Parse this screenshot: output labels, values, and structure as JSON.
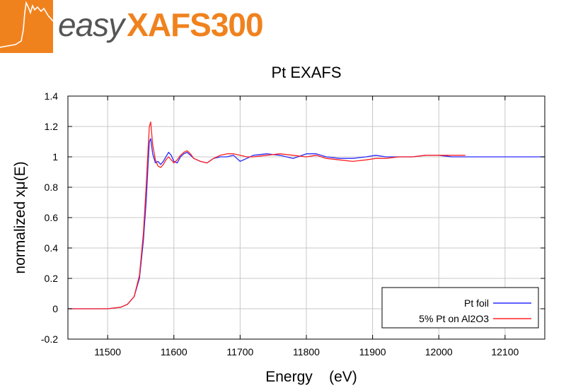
{
  "logo": {
    "easy": "easy",
    "brand": "XAFS300"
  },
  "chart_data": {
    "type": "line",
    "title": "Pt EXAFS",
    "xlabel": "Energy    (eV)",
    "ylabel": "normalized xμ(E)",
    "xlim": [
      11440,
      12160
    ],
    "ylim": [
      -0.2,
      1.4
    ],
    "x_ticks": [
      11500,
      11600,
      11700,
      11800,
      11900,
      12000,
      12100
    ],
    "y_ticks": [
      -0.2,
      0,
      0.2,
      0.4,
      0.6,
      0.8,
      1,
      1.2,
      1.4
    ],
    "y_tick_labels": [
      "-0.2",
      "0",
      "0.2",
      "0.4",
      "0.6",
      "0.8",
      "1",
      "1.2",
      "1.4"
    ],
    "grid": true,
    "legend_position": "bottom-right",
    "series": [
      {
        "name": "Pt foil",
        "color": "#2a2aff",
        "x": [
          11440,
          11460,
          11480,
          11500,
          11520,
          11530,
          11540,
          11548,
          11554,
          11558,
          11561,
          11563,
          11565,
          11568,
          11572,
          11576,
          11580,
          11584,
          11588,
          11592,
          11596,
          11600,
          11605,
          11610,
          11615,
          11620,
          11625,
          11630,
          11640,
          11650,
          11660,
          11670,
          11680,
          11690,
          11700,
          11710,
          11720,
          11740,
          11760,
          11780,
          11800,
          11815,
          11830,
          11850,
          11870,
          11890,
          11905,
          11920,
          11940,
          11960,
          11980,
          12000,
          12020,
          12040,
          12060,
          12080,
          12100,
          12120,
          12140,
          12160
        ],
        "y": [
          0.0,
          0.0,
          0.0,
          0.0,
          0.01,
          0.03,
          0.08,
          0.2,
          0.45,
          0.7,
          0.95,
          1.1,
          1.12,
          1.02,
          0.96,
          0.97,
          0.95,
          0.97,
          1.0,
          1.03,
          1.01,
          0.97,
          0.96,
          1.0,
          1.02,
          1.03,
          1.01,
          0.99,
          0.97,
          0.96,
          0.99,
          1.0,
          1.0,
          1.01,
          0.97,
          0.99,
          1.01,
          1.02,
          1.01,
          0.99,
          1.02,
          1.02,
          1.0,
          0.99,
          0.99,
          1.0,
          1.01,
          1.0,
          1.0,
          1.0,
          1.01,
          1.01,
          1.0,
          1.0,
          1.0,
          1.0,
          1.0,
          1.0,
          1.0,
          1.0
        ]
      },
      {
        "name": "5% Pt on Al2O3",
        "color": "#ff2020",
        "x": [
          11440,
          11460,
          11480,
          11500,
          11520,
          11530,
          11540,
          11548,
          11554,
          11558,
          11561,
          11563,
          11565,
          11568,
          11572,
          11576,
          11580,
          11584,
          11588,
          11592,
          11596,
          11600,
          11605,
          11610,
          11615,
          11620,
          11625,
          11630,
          11640,
          11650,
          11660,
          11670,
          11680,
          11690,
          11700,
          11710,
          11720,
          11740,
          11760,
          11780,
          11800,
          11815,
          11830,
          11850,
          11870,
          11890,
          11905,
          11920,
          11940,
          11960,
          11980,
          12000,
          12020,
          12040
        ],
        "y": [
          0.0,
          0.0,
          0.0,
          0.0,
          0.01,
          0.03,
          0.08,
          0.22,
          0.5,
          0.8,
          1.05,
          1.2,
          1.23,
          1.08,
          0.98,
          0.94,
          0.93,
          0.95,
          0.98,
          1.0,
          0.98,
          0.96,
          0.98,
          1.01,
          1.03,
          1.04,
          1.02,
          0.99,
          0.97,
          0.96,
          0.99,
          1.01,
          1.02,
          1.02,
          1.01,
          1.0,
          1.0,
          1.01,
          1.02,
          1.01,
          1.0,
          1.01,
          0.99,
          0.98,
          0.97,
          0.98,
          0.99,
          0.99,
          1.0,
          1.0,
          1.01,
          1.01,
          1.01,
          1.01
        ]
      }
    ]
  }
}
